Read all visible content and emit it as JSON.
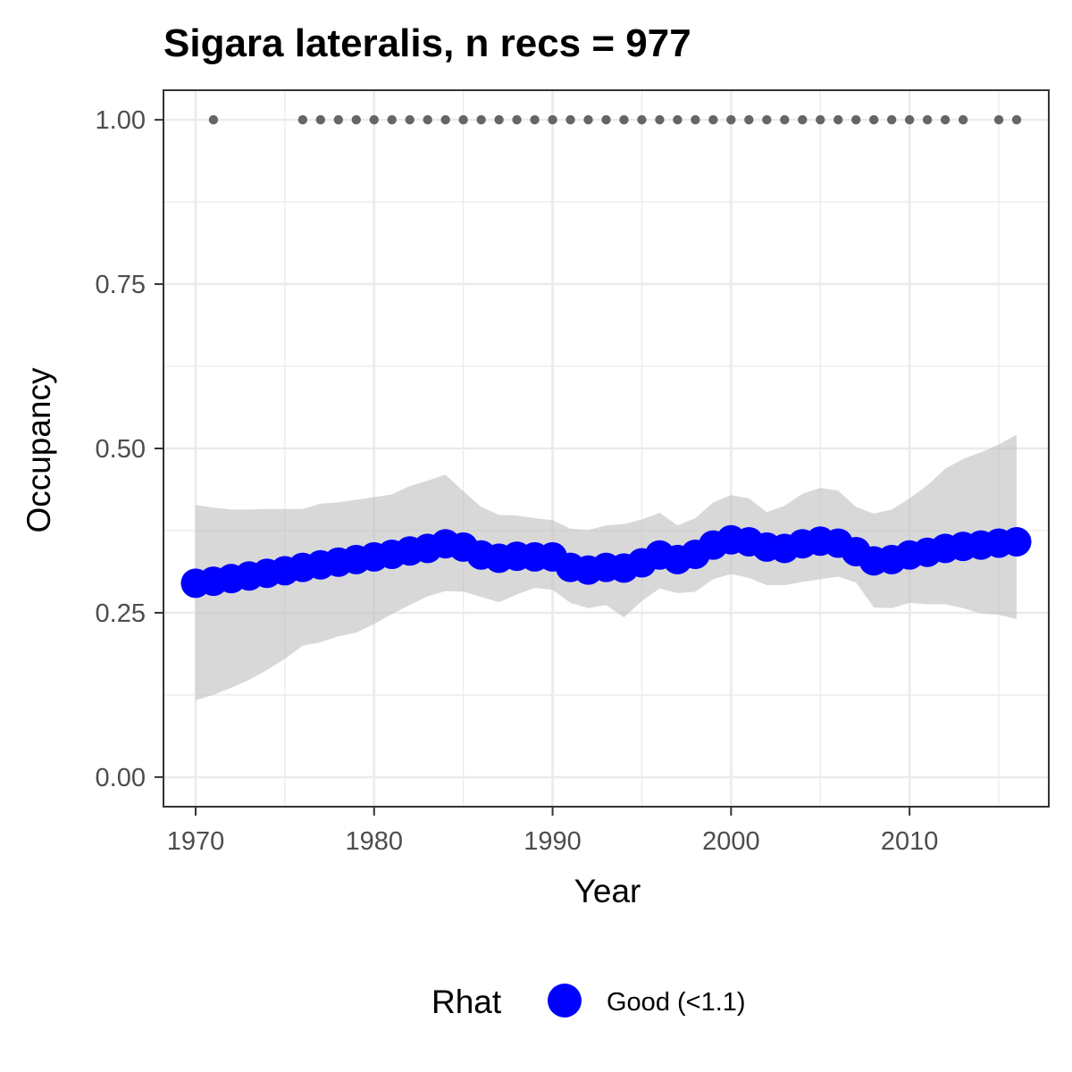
{
  "chart_data": {
    "type": "line",
    "title": "Sigara lateralis, n recs = 977",
    "xlabel": "Year",
    "ylabel": "Occupancy",
    "xlim": [
      1968.2,
      2017.8
    ],
    "ylim": [
      -0.045,
      1.045
    ],
    "x_ticks": [
      1970,
      1980,
      1990,
      2000,
      2010
    ],
    "x_tick_labels": [
      "1970",
      "1980",
      "1990",
      "2000",
      "2010"
    ],
    "y_ticks": [
      0,
      0.25,
      0.5,
      0.75,
      1.0
    ],
    "y_tick_labels": [
      "0.00",
      "0.25",
      "0.50",
      "0.75",
      "1.00"
    ],
    "grid": true,
    "legend": {
      "title": "Rhat",
      "position": "bottom",
      "entries": [
        {
          "label": "Good (<1.1)",
          "color": "#0000ff"
        }
      ]
    },
    "colors": {
      "series": "#0000ff",
      "ribbon": "#bebebe",
      "records": "#666666",
      "panel_border": "#333333",
      "grid": "#ebebeb"
    },
    "series": [
      {
        "name": "Good (<1.1)",
        "x": [
          1970,
          1971,
          1972,
          1973,
          1974,
          1975,
          1976,
          1977,
          1978,
          1979,
          1980,
          1981,
          1982,
          1983,
          1984,
          1985,
          1986,
          1987,
          1988,
          1989,
          1990,
          1991,
          1992,
          1993,
          1994,
          1995,
          1996,
          1997,
          1998,
          1999,
          2000,
          2001,
          2002,
          2003,
          2004,
          2005,
          2006,
          2007,
          2008,
          2009,
          2010,
          2011,
          2012,
          2013,
          2014,
          2015,
          2016
        ],
        "y": [
          0.295,
          0.298,
          0.302,
          0.306,
          0.31,
          0.314,
          0.319,
          0.323,
          0.327,
          0.331,
          0.335,
          0.339,
          0.344,
          0.348,
          0.355,
          0.35,
          0.338,
          0.333,
          0.336,
          0.335,
          0.335,
          0.319,
          0.315,
          0.319,
          0.318,
          0.326,
          0.338,
          0.331,
          0.339,
          0.353,
          0.361,
          0.358,
          0.35,
          0.348,
          0.355,
          0.359,
          0.356,
          0.343,
          0.329,
          0.331,
          0.338,
          0.342,
          0.348,
          0.351,
          0.353,
          0.356,
          0.358
        ],
        "lower": [
          0.117,
          0.125,
          0.136,
          0.148,
          0.163,
          0.18,
          0.2,
          0.205,
          0.214,
          0.22,
          0.233,
          0.248,
          0.262,
          0.275,
          0.283,
          0.282,
          0.274,
          0.266,
          0.278,
          0.288,
          0.285,
          0.265,
          0.257,
          0.262,
          0.243,
          0.268,
          0.287,
          0.28,
          0.282,
          0.301,
          0.309,
          0.303,
          0.292,
          0.292,
          0.297,
          0.301,
          0.305,
          0.296,
          0.258,
          0.257,
          0.265,
          0.263,
          0.263,
          0.257,
          0.249,
          0.247,
          0.24
        ],
        "upper": [
          0.414,
          0.41,
          0.407,
          0.407,
          0.408,
          0.408,
          0.408,
          0.416,
          0.418,
          0.422,
          0.426,
          0.43,
          0.443,
          0.451,
          0.46,
          0.435,
          0.411,
          0.399,
          0.398,
          0.394,
          0.391,
          0.378,
          0.376,
          0.383,
          0.385,
          0.392,
          0.402,
          0.383,
          0.394,
          0.418,
          0.429,
          0.424,
          0.403,
          0.413,
          0.431,
          0.44,
          0.436,
          0.411,
          0.401,
          0.407,
          0.424,
          0.444,
          0.469,
          0.484,
          0.494,
          0.506,
          0.521
        ]
      }
    ],
    "records": {
      "name": "records",
      "x": [
        1971,
        1976,
        1977,
        1978,
        1979,
        1980,
        1981,
        1982,
        1983,
        1984,
        1985,
        1986,
        1987,
        1988,
        1989,
        1990,
        1991,
        1992,
        1993,
        1994,
        1995,
        1996,
        1997,
        1998,
        1999,
        2000,
        2001,
        2002,
        2003,
        2004,
        2005,
        2006,
        2007,
        2008,
        2009,
        2010,
        2011,
        2012,
        2013,
        2015,
        2016
      ],
      "y": 1.0
    }
  }
}
